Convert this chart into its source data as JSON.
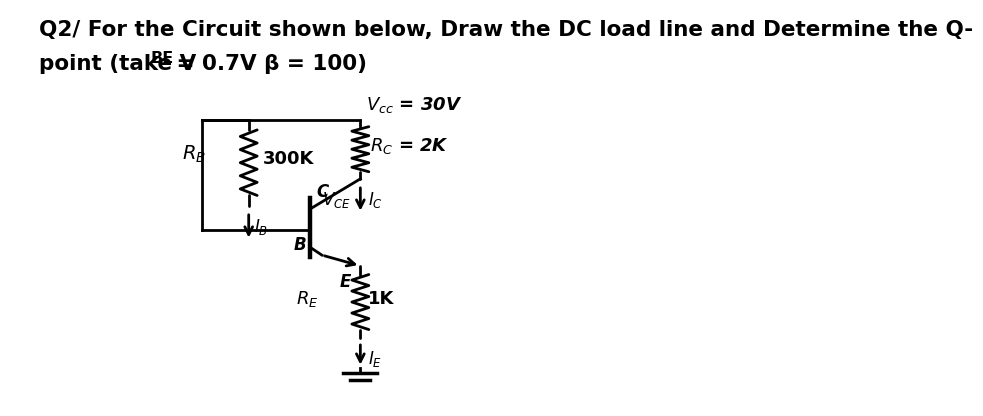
{
  "title_line1": "Q2/ For the Circuit shown below, Draw the DC load line and Determine the Q-",
  "title_line2": "point (take V",
  "title_BE": "BE",
  "title_rest": " = 0.7V β = 100)",
  "bg_color": "#ffffff",
  "line_color": "#000000",
  "text_color": "#000000",
  "title_fontsize": 15.5,
  "circuit_font": 13
}
